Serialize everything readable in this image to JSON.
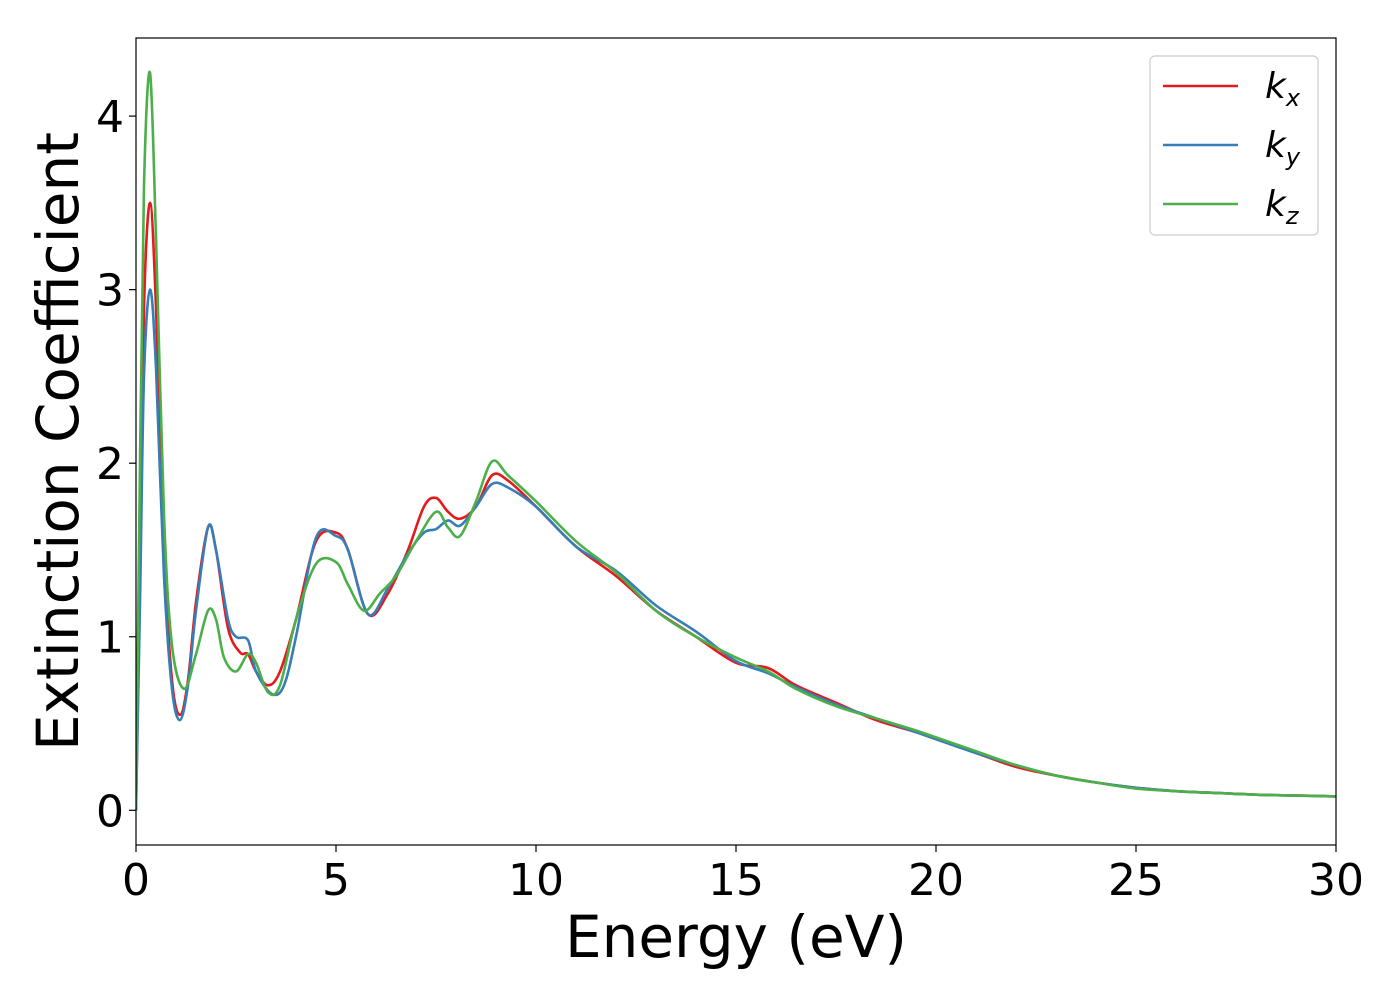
{
  "chart_data": {
    "type": "line",
    "title": "",
    "xlabel": "Energy (eV)",
    "ylabel": "Extinction Coefficient",
    "xlim": [
      0,
      30
    ],
    "ylim": [
      -0.2,
      4.45
    ],
    "xticks": [
      0,
      5,
      10,
      15,
      20,
      25,
      30
    ],
    "yticks": [
      0,
      1,
      2,
      3,
      4
    ],
    "grid": false,
    "legend_position": "top-right",
    "series": [
      {
        "name": "k_x",
        "label_base": "k",
        "label_sub": "x",
        "color": "#e41a1c",
        "x": [
          0,
          0.1,
          0.2,
          0.35,
          0.5,
          0.7,
          0.9,
          1.1,
          1.3,
          1.5,
          1.8,
          2.0,
          2.3,
          2.6,
          2.8,
          3.0,
          3.3,
          3.6,
          4.0,
          4.5,
          5.0,
          5.3,
          5.8,
          6.3,
          6.8,
          7.2,
          7.5,
          7.8,
          8.1,
          8.5,
          8.9,
          9.3,
          10.0,
          11.0,
          12.0,
          13.0,
          14.0,
          15.0,
          15.8,
          16.5,
          17.5,
          18.5,
          19.5,
          20.0,
          21.0,
          22.0,
          23.0,
          24.0,
          25.0,
          26.0,
          27.0,
          28.0,
          29.0,
          30.0
        ],
        "values": [
          0,
          1.4,
          2.9,
          3.5,
          2.9,
          1.5,
          0.75,
          0.55,
          0.75,
          1.2,
          1.63,
          1.5,
          1.05,
          0.91,
          0.9,
          0.8,
          0.72,
          0.8,
          1.1,
          1.55,
          1.6,
          1.5,
          1.13,
          1.25,
          1.5,
          1.75,
          1.8,
          1.72,
          1.68,
          1.75,
          1.93,
          1.9,
          1.75,
          1.52,
          1.35,
          1.15,
          1.0,
          0.85,
          0.82,
          0.72,
          0.62,
          0.52,
          0.45,
          0.41,
          0.33,
          0.25,
          0.2,
          0.16,
          0.13,
          0.11,
          0.1,
          0.09,
          0.085,
          0.08
        ]
      },
      {
        "name": "k_y",
        "label_base": "k",
        "label_sub": "y",
        "color": "#377eb8",
        "x": [
          0,
          0.1,
          0.2,
          0.35,
          0.5,
          0.7,
          0.9,
          1.1,
          1.3,
          1.5,
          1.8,
          2.0,
          2.3,
          2.5,
          2.8,
          3.0,
          3.4,
          3.7,
          4.0,
          4.5,
          5.0,
          5.3,
          5.8,
          6.3,
          6.8,
          7.2,
          7.5,
          7.8,
          8.1,
          8.5,
          8.9,
          9.3,
          10.0,
          11.0,
          12.0,
          13.0,
          14.0,
          15.0,
          15.8,
          16.5,
          17.5,
          18.5,
          19.5,
          20.0,
          21.0,
          22.0,
          23.0,
          24.0,
          25.0,
          26.0,
          27.0,
          28.0,
          29.0,
          30.0
        ],
        "values": [
          0,
          1.2,
          2.5,
          3.0,
          2.55,
          1.35,
          0.7,
          0.52,
          0.72,
          1.15,
          1.63,
          1.5,
          1.1,
          1.0,
          0.98,
          0.8,
          0.67,
          0.72,
          1.0,
          1.57,
          1.58,
          1.5,
          1.13,
          1.28,
          1.48,
          1.6,
          1.62,
          1.67,
          1.64,
          1.75,
          1.88,
          1.86,
          1.75,
          1.52,
          1.38,
          1.18,
          1.03,
          0.86,
          0.79,
          0.71,
          0.61,
          0.53,
          0.45,
          0.41,
          0.33,
          0.26,
          0.2,
          0.16,
          0.13,
          0.11,
          0.1,
          0.09,
          0.085,
          0.08
        ]
      },
      {
        "name": "k_z",
        "label_base": "k",
        "label_sub": "z",
        "color": "#4daf4a",
        "x": [
          0,
          0.1,
          0.2,
          0.35,
          0.5,
          0.7,
          0.9,
          1.2,
          1.5,
          1.8,
          2.0,
          2.2,
          2.5,
          2.8,
          3.0,
          3.3,
          3.6,
          4.0,
          4.5,
          5.0,
          5.3,
          5.7,
          6.1,
          6.5,
          7.0,
          7.5,
          7.8,
          8.1,
          8.5,
          8.9,
          9.3,
          10.0,
          11.0,
          12.0,
          13.0,
          14.0,
          15.0,
          15.8,
          16.5,
          17.5,
          18.5,
          19.5,
          20.0,
          21.0,
          22.0,
          23.0,
          24.0,
          25.0,
          26.0,
          27.0,
          28.0,
          29.0,
          30.0
        ],
        "values": [
          0,
          2.0,
          3.6,
          4.25,
          3.3,
          1.7,
          0.95,
          0.7,
          0.9,
          1.15,
          1.1,
          0.88,
          0.8,
          0.9,
          0.85,
          0.68,
          0.72,
          1.1,
          1.42,
          1.43,
          1.3,
          1.15,
          1.25,
          1.35,
          1.55,
          1.72,
          1.63,
          1.58,
          1.78,
          2.01,
          1.93,
          1.78,
          1.55,
          1.37,
          1.15,
          1.0,
          0.88,
          0.8,
          0.7,
          0.6,
          0.53,
          0.46,
          0.42,
          0.34,
          0.26,
          0.2,
          0.16,
          0.125,
          0.11,
          0.1,
          0.09,
          0.085,
          0.08
        ]
      }
    ]
  }
}
